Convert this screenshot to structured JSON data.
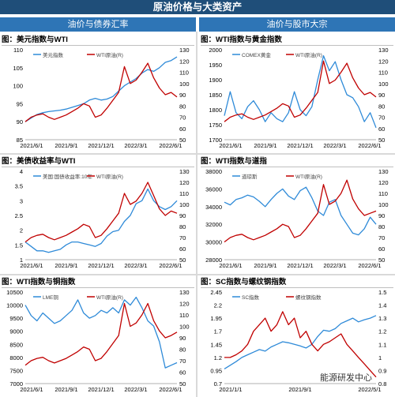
{
  "banner": "原油价格与大类资产",
  "columns": [
    "油价与债券汇率",
    "油价与股市大宗"
  ],
  "watermark": "能源研发中心",
  "colors": {
    "blue": "#2e8ad8",
    "red": "#c00000",
    "banner": "#1f4e79",
    "head": "#2e75b6"
  },
  "chart_data": [
    {
      "type": "line",
      "title": "图：美元指数与WTI",
      "x_labels": [
        "2021/6/1",
        "2021/9/1",
        "2021/12/1",
        "2022/3/1",
        "2022/6/1"
      ],
      "ylim_left": [
        85,
        110
      ],
      "yticks_left": [
        85,
        90,
        95,
        100,
        105,
        110
      ],
      "ylim_right": [
        50,
        130
      ],
      "yticks_right": [
        50,
        60,
        70,
        80,
        90,
        100,
        110,
        120,
        130
      ],
      "series": [
        {
          "name": "美元指数",
          "axis": "left",
          "color": "#2e8ad8",
          "values": [
            90,
            91,
            92,
            92.5,
            92.8,
            93,
            93.2,
            93.5,
            94,
            94.5,
            95,
            96,
            96.5,
            96,
            96.3,
            97,
            98.5,
            100,
            101,
            102,
            103.5,
            104.5,
            104,
            105,
            106.5,
            107,
            108
          ]
        },
        {
          "name": "WTI原油(R)",
          "axis": "right",
          "color": "#c00000",
          "values": [
            66,
            70,
            72,
            73,
            70,
            68,
            70,
            72,
            75,
            78,
            82,
            80,
            70,
            72,
            78,
            85,
            92,
            115,
            100,
            103,
            110,
            118,
            105,
            96,
            90,
            92,
            88
          ]
        }
      ]
    },
    {
      "type": "line",
      "title": "图：WTI指数与黄金指数",
      "x_labels": [
        "2021/6/1",
        "2021/9/1",
        "2021/12/1",
        "2022/3/1",
        "2022/6/1"
      ],
      "ylim_left": [
        1700,
        2000
      ],
      "yticks_left": [
        1700,
        1750,
        1800,
        1850,
        1900,
        1950,
        2000
      ],
      "ylim_right": [
        50,
        130
      ],
      "yticks_right": [
        50,
        60,
        70,
        80,
        90,
        100,
        110,
        120,
        130
      ],
      "series": [
        {
          "name": "COMEX黄金",
          "axis": "left",
          "color": "#2e8ad8",
          "values": [
            1780,
            1860,
            1790,
            1770,
            1810,
            1830,
            1800,
            1760,
            1790,
            1770,
            1760,
            1790,
            1860,
            1800,
            1780,
            1810,
            1900,
            1980,
            1930,
            1960,
            1900,
            1850,
            1840,
            1810,
            1760,
            1790,
            1740
          ]
        },
        {
          "name": "WTI原油(R)",
          "axis": "right",
          "color": "#c00000",
          "values": [
            66,
            70,
            72,
            73,
            70,
            68,
            70,
            72,
            75,
            78,
            82,
            80,
            70,
            72,
            78,
            85,
            92,
            120,
            100,
            103,
            110,
            118,
            105,
            96,
            90,
            92,
            88
          ]
        }
      ]
    },
    {
      "type": "line",
      "title": "图：美债收益率与WTI",
      "x_labels": [
        "2021/6/1",
        "2021/9/1",
        "2021/12/1",
        "2022/3/1",
        "2022/6/1"
      ],
      "ylim_left": [
        1,
        4
      ],
      "yticks_left": [
        1,
        1.5,
        2,
        2.5,
        3,
        3.5,
        4
      ],
      "ylim_right": [
        50,
        130
      ],
      "yticks_right": [
        50,
        60,
        70,
        80,
        90,
        100,
        110,
        120,
        130
      ],
      "series": [
        {
          "name": "美国:国债收益率:10年",
          "axis": "left",
          "color": "#2e8ad8",
          "values": [
            1.6,
            1.45,
            1.3,
            1.3,
            1.25,
            1.3,
            1.35,
            1.5,
            1.6,
            1.6,
            1.55,
            1.5,
            1.45,
            1.55,
            1.8,
            1.95,
            2.0,
            2.3,
            2.5,
            2.9,
            3.0,
            3.4,
            3.0,
            2.8,
            2.7,
            2.8,
            3.0
          ]
        },
        {
          "name": "WTI原油(R)",
          "axis": "right",
          "color": "#c00000",
          "values": [
            66,
            70,
            72,
            73,
            70,
            68,
            70,
            72,
            75,
            78,
            82,
            80,
            70,
            72,
            78,
            85,
            92,
            110,
            100,
            103,
            110,
            120,
            108,
            96,
            90,
            94,
            92
          ]
        }
      ]
    },
    {
      "type": "line",
      "title": "图：WTI指数与道指",
      "x_labels": [
        "2021/6/1",
        "2021/9/1",
        "2021/12/1",
        "2022/3/1",
        "2022/6/1"
      ],
      "ylim_left": [
        28000,
        38000
      ],
      "yticks_left": [
        28000,
        30000,
        32000,
        34000,
        36000,
        38000
      ],
      "ylim_right": [
        50,
        130
      ],
      "yticks_right": [
        50,
        60,
        70,
        80,
        90,
        100,
        110,
        120,
        130
      ],
      "series": [
        {
          "name": "道琼斯",
          "axis": "left",
          "color": "#2e8ad8",
          "values": [
            34500,
            34200,
            34800,
            35000,
            35300,
            35100,
            34600,
            34000,
            34800,
            35500,
            36000,
            35200,
            34800,
            35800,
            36200,
            35000,
            33500,
            33000,
            34500,
            34800,
            33000,
            32000,
            31000,
            30800,
            31500,
            32800,
            32000
          ]
        },
        {
          "name": "WTI原油(R)",
          "axis": "right",
          "color": "#c00000",
          "values": [
            66,
            70,
            72,
            73,
            70,
            68,
            70,
            72,
            75,
            78,
            82,
            80,
            70,
            72,
            78,
            85,
            92,
            118,
            100,
            103,
            110,
            122,
            105,
            96,
            90,
            92,
            94
          ]
        }
      ]
    },
    {
      "type": "line",
      "title": "图：WTI指数与铜指数",
      "x_labels": [
        "2021/6/1",
        "2021/9/1",
        "2021/12/1",
        "2022/3/1",
        "2022/6/1"
      ],
      "ylim_left": [
        7000,
        10500
      ],
      "yticks_left": [
        7000,
        7500,
        8000,
        8500,
        9000,
        9500,
        10000,
        10500
      ],
      "ylim_right": [
        50,
        130
      ],
      "yticks_right": [
        50,
        60,
        70,
        80,
        90,
        100,
        110,
        120,
        130
      ],
      "series": [
        {
          "name": "LME铜",
          "axis": "left",
          "color": "#2e8ad8",
          "values": [
            10000,
            9600,
            9400,
            9700,
            9500,
            9300,
            9400,
            9600,
            9800,
            10200,
            9700,
            9500,
            9600,
            9800,
            9700,
            9900,
            9700,
            10200,
            10000,
            10300,
            9900,
            9400,
            9200,
            8600,
            7600,
            7700,
            7800
          ]
        },
        {
          "name": "WTI原油(R)",
          "axis": "right",
          "color": "#c00000",
          "values": [
            66,
            70,
            72,
            73,
            70,
            68,
            70,
            72,
            75,
            78,
            82,
            80,
            70,
            72,
            78,
            85,
            92,
            120,
            100,
            103,
            110,
            120,
            105,
            96,
            90,
            92,
            95
          ]
        }
      ]
    },
    {
      "type": "line",
      "title": "图：SC指数与螺纹钢指数",
      "x_labels": [
        "2021/1/1",
        "2021/9/1",
        "2022/5/1"
      ],
      "ylim_left": [
        0.7,
        2.45
      ],
      "yticks_left": [
        0.7,
        0.95,
        1.2,
        1.45,
        1.7,
        1.95,
        2.2,
        2.45
      ],
      "ylim_right": [
        0.8,
        1.5
      ],
      "yticks_right": [
        0.8,
        0.9,
        1.0,
        1.1,
        1.2,
        1.3,
        1.4,
        1.5
      ],
      "legend": [
        "SC指数",
        "螺纹钢指数"
      ],
      "series": [
        {
          "name": "SC指数",
          "axis": "left",
          "color": "#2e8ad8",
          "values": [
            0.98,
            1.05,
            1.12,
            1.2,
            1.25,
            1.3,
            1.35,
            1.32,
            1.4,
            1.45,
            1.5,
            1.48,
            1.45,
            1.42,
            1.38,
            1.45,
            1.6,
            1.72,
            1.7,
            1.75,
            1.85,
            1.9,
            1.95,
            1.88,
            1.92,
            1.95,
            2.0
          ]
        },
        {
          "name": "螺纹钢指数",
          "axis": "right",
          "color": "#c00000",
          "values": [
            1.0,
            1.0,
            1.02,
            1.05,
            1.1,
            1.2,
            1.25,
            1.3,
            1.2,
            1.25,
            1.35,
            1.25,
            1.3,
            1.15,
            1.2,
            1.1,
            1.05,
            1.1,
            1.12,
            1.15,
            1.18,
            1.1,
            1.05,
            1.0,
            0.95,
            0.9,
            0.85
          ]
        }
      ]
    }
  ]
}
